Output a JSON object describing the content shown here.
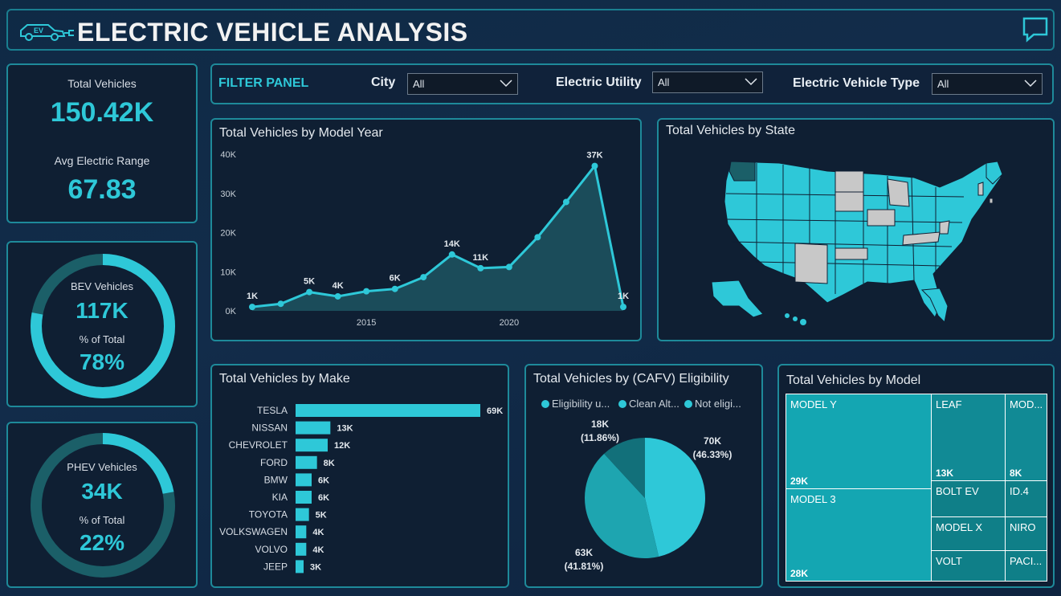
{
  "header": {
    "title": "ELECTRIC VEHICLE ANALYSIS",
    "ev_badge": "EV"
  },
  "kpi": {
    "total_vehicles_label": "Total Vehicles",
    "total_vehicles_value": "150.42K",
    "avg_range_label": "Avg Electric Range",
    "avg_range_value": "67.83"
  },
  "bev": {
    "label": "BEV Vehicles",
    "value": "117K",
    "pct_label": "% of Total",
    "pct_value": "78%",
    "fraction": 0.78
  },
  "phev": {
    "label": "PHEV Vehicles",
    "value": "34K",
    "pct_label": "% of Total",
    "pct_value": "22%",
    "fraction": 0.22
  },
  "filters": {
    "panel_label": "FILTER PANEL",
    "city_label": "City",
    "city_value": "All",
    "utility_label": "Electric Utility",
    "utility_value": "All",
    "type_label": "Electric Vehicle Type",
    "type_value": "All"
  },
  "colors": {
    "accent": "#2ec8d8",
    "accent_dark": "#1b5f68",
    "panel_border": "#1e8a9a",
    "panel_bg": "#0f1f33",
    "grey_state": "#c8c8c8"
  },
  "year_chart": {
    "title": "Total Vehicles by Model Year"
  },
  "state_chart": {
    "title": "Total Vehicles by State"
  },
  "make_chart": {
    "title": "Total Vehicles by Make"
  },
  "cafv_chart": {
    "title": "Total Vehicles by (CAFV) Eligibility",
    "legend": [
      "Eligibility u...",
      "Clean Alt...",
      "Not eligi..."
    ]
  },
  "model_chart": {
    "title": "Total Vehicles by Model"
  },
  "chart_data": [
    {
      "type": "area",
      "title": "Total Vehicles by Model Year",
      "x": [
        2011,
        2012,
        2013,
        2014,
        2015,
        2016,
        2017,
        2018,
        2019,
        2020,
        2021,
        2022,
        2023,
        2024
      ],
      "values": [
        1000,
        1800,
        4800,
        3700,
        5000,
        5600,
        8600,
        14400,
        10900,
        11200,
        18800,
        27800,
        37000,
        1000
      ],
      "data_labels": [
        {
          "x": 2011,
          "text": "1K"
        },
        {
          "x": 2013,
          "text": "5K"
        },
        {
          "x": 2014,
          "text": "4K"
        },
        {
          "x": 2016,
          "text": "6K"
        },
        {
          "x": 2018,
          "text": "14K"
        },
        {
          "x": 2019,
          "text": "11K"
        },
        {
          "x": 2023,
          "text": "37K"
        },
        {
          "x": 2024,
          "text": "1K"
        }
      ],
      "x_ticks": [
        2015,
        2020
      ],
      "y_ticks": [
        "0K",
        "10K",
        "20K",
        "30K",
        "40K"
      ],
      "ylim": [
        0,
        40000
      ],
      "xlabel": "",
      "ylabel": ""
    },
    {
      "type": "bar",
      "title": "Total Vehicles by Make",
      "orientation": "horizontal",
      "categories": [
        "TESLA",
        "NISSAN",
        "CHEVROLET",
        "FORD",
        "BMW",
        "KIA",
        "TOYOTA",
        "VOLKSWAGEN",
        "VOLVO",
        "JEEP"
      ],
      "values": [
        69,
        13,
        12,
        8,
        6,
        6,
        5,
        4,
        4,
        3
      ],
      "value_labels": [
        "69K",
        "13K",
        "12K",
        "8K",
        "6K",
        "6K",
        "5K",
        "4K",
        "4K",
        "3K"
      ]
    },
    {
      "type": "pie",
      "title": "Total Vehicles by (CAFV) Eligibility",
      "categories": [
        "Eligibility u...",
        "Clean Alt...",
        "Not eligi..."
      ],
      "values": [
        46.33,
        41.81,
        11.86
      ],
      "value_labels": [
        "70K",
        "63K",
        "18K"
      ],
      "pct_labels": [
        "(46.33%)",
        "(41.81%)",
        "(11.86%)"
      ],
      "colors": [
        "#2ec8d8",
        "#1ea5b0",
        "#12707a"
      ]
    },
    {
      "type": "table",
      "title": "Total Vehicles by Model",
      "categories": [
        "MODEL Y",
        "MODEL 3",
        "LEAF",
        "MOD...",
        "BOLT EV",
        "ID.4",
        "MODEL X",
        "NIRO",
        "VOLT",
        "PACI..."
      ],
      "value_labels": [
        "29K",
        "28K",
        "13K",
        "8K",
        "",
        "",
        "",
        "",
        "",
        ""
      ]
    }
  ]
}
